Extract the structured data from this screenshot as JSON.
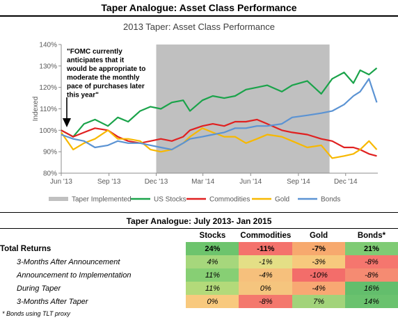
{
  "header": {
    "title": "Taper Analogue: Asset Class Performance"
  },
  "chart_data": {
    "type": "line",
    "title": "2013 Taper: Asset Class Performance",
    "ylabel": "Indexed",
    "ylim": [
      80,
      140
    ],
    "yticks": [
      "80%",
      "90%",
      "100%",
      "110%",
      "120%",
      "130%",
      "140%"
    ],
    "xlim": [
      "2013-06-01",
      "2015-02-01"
    ],
    "xticks": [
      {
        "label": "Jun '13",
        "date": "2013-06-01"
      },
      {
        "label": "Sep '13",
        "date": "2013-09-01"
      },
      {
        "label": "Dec '13",
        "date": "2013-12-01"
      },
      {
        "label": "Mar '14",
        "date": "2014-03-01"
      },
      {
        "label": "Jun '14",
        "date": "2014-06-01"
      },
      {
        "label": "Sep '14",
        "date": "2014-09-01"
      },
      {
        "label": "Dec '14",
        "date": "2014-12-01"
      }
    ],
    "shaded_region": {
      "label": "Taper Implemented",
      "start": "2013-12-01",
      "end": "2014-10-31",
      "color": "#c0c0c0"
    },
    "annotation": "\"FOMC currently anticipates that it would be appropriate to moderate the monthly pace of purchases later this year\"",
    "legend_position": "bottom",
    "series": [
      {
        "name": "US Stocks",
        "color": "#1aa34a",
        "x": [
          "2013-06-01",
          "2013-06-24",
          "2013-07-15",
          "2013-08-05",
          "2013-08-30",
          "2013-09-18",
          "2013-10-08",
          "2013-10-31",
          "2013-11-20",
          "2013-12-10",
          "2013-12-31",
          "2014-01-22",
          "2014-02-04",
          "2014-02-28",
          "2014-03-20",
          "2014-04-11",
          "2014-05-02",
          "2014-05-23",
          "2014-06-13",
          "2014-07-03",
          "2014-07-31",
          "2014-08-20",
          "2014-09-18",
          "2014-10-15",
          "2014-11-05",
          "2014-11-28",
          "2014-12-16",
          "2014-12-29",
          "2015-01-15",
          "2015-01-30"
        ],
        "y": [
          100,
          97,
          103,
          105,
          102,
          106,
          104,
          109,
          111,
          110,
          113,
          114,
          109,
          114,
          116,
          115,
          116,
          119,
          120,
          121,
          118,
          121,
          123,
          117,
          124,
          127,
          122,
          128,
          126,
          129
        ]
      },
      {
        "name": "Commodities",
        "color": "#e02020",
        "x": [
          "2013-06-01",
          "2013-06-24",
          "2013-07-15",
          "2013-08-05",
          "2013-08-30",
          "2013-09-18",
          "2013-10-08",
          "2013-10-31",
          "2013-11-20",
          "2013-12-10",
          "2013-12-31",
          "2014-01-22",
          "2014-02-04",
          "2014-02-28",
          "2014-03-20",
          "2014-04-11",
          "2014-05-02",
          "2014-05-23",
          "2014-06-13",
          "2014-07-03",
          "2014-07-31",
          "2014-08-20",
          "2014-09-18",
          "2014-10-15",
          "2014-11-05",
          "2014-11-28",
          "2014-12-16",
          "2014-12-29",
          "2015-01-15",
          "2015-01-30"
        ],
        "y": [
          100,
          97,
          99,
          101,
          100,
          97,
          95,
          94,
          95,
          96,
          95,
          97,
          100,
          102,
          103,
          102,
          104,
          104,
          105,
          103,
          100,
          99,
          98,
          96,
          95,
          92,
          92,
          91,
          89,
          88
        ]
      },
      {
        "name": "Gold",
        "color": "#f7b800",
        "x": [
          "2013-06-01",
          "2013-06-24",
          "2013-07-15",
          "2013-08-05",
          "2013-08-30",
          "2013-09-18",
          "2013-10-08",
          "2013-10-31",
          "2013-11-20",
          "2013-12-10",
          "2013-12-31",
          "2014-01-22",
          "2014-02-04",
          "2014-02-28",
          "2014-03-20",
          "2014-04-11",
          "2014-05-02",
          "2014-05-23",
          "2014-06-13",
          "2014-07-03",
          "2014-07-31",
          "2014-08-20",
          "2014-09-18",
          "2014-10-15",
          "2014-11-05",
          "2014-11-28",
          "2014-12-16",
          "2014-12-29",
          "2015-01-15",
          "2015-01-30"
        ],
        "y": [
          99,
          91,
          94,
          96,
          100,
          96,
          96,
          95,
          91,
          90,
          91,
          94,
          97,
          101,
          99,
          97,
          97,
          94,
          96,
          98,
          97,
          95,
          92,
          93,
          87,
          88,
          89,
          91,
          95,
          91
        ]
      },
      {
        "name": "Bonds",
        "color": "#5b93d3",
        "x": [
          "2013-06-01",
          "2013-06-24",
          "2013-07-15",
          "2013-08-05",
          "2013-08-30",
          "2013-09-18",
          "2013-10-08",
          "2013-10-31",
          "2013-11-20",
          "2013-12-10",
          "2013-12-31",
          "2014-01-22",
          "2014-02-04",
          "2014-02-28",
          "2014-03-20",
          "2014-04-11",
          "2014-05-02",
          "2014-05-23",
          "2014-06-13",
          "2014-07-03",
          "2014-07-31",
          "2014-08-20",
          "2014-09-18",
          "2014-10-15",
          "2014-11-05",
          "2014-11-28",
          "2014-12-16",
          "2014-12-29",
          "2015-01-15",
          "2015-01-30"
        ],
        "y": [
          98,
          96,
          95,
          92,
          93,
          95,
          94,
          94,
          93,
          92,
          91,
          94,
          96,
          97,
          98,
          99,
          101,
          101,
          102,
          102,
          103,
          106,
          107,
          108,
          109,
          112,
          116,
          118,
          124,
          113
        ]
      }
    ]
  },
  "table": {
    "title": "Taper Analogue: July 2013- Jan 2015",
    "columns": [
      "Stocks",
      "Commodities",
      "Gold",
      "Bonds*"
    ],
    "rows": [
      {
        "label": "Total Returns",
        "style": "total",
        "values": [
          "24%",
          "-11%",
          "-7%",
          "21%"
        ],
        "colors": [
          "#6dc46d",
          "#f4726c",
          "#f7a96e",
          "#7fcb74"
        ]
      },
      {
        "label": "3-Months After Announcement",
        "style": "sub",
        "values": [
          "4%",
          "-1%",
          "-3%",
          "-8%"
        ],
        "colors": [
          "#a6d77c",
          "#e4df86",
          "#f7c97d",
          "#f5766e"
        ]
      },
      {
        "label": "Announcement to Implementation",
        "style": "sub",
        "values": [
          "11%",
          "-4%",
          "-10%",
          "-8%"
        ],
        "colors": [
          "#87cf74",
          "#f6c07c",
          "#f36d6a",
          "#f58b72"
        ]
      },
      {
        "label": "During Taper",
        "style": "sub",
        "values": [
          "11%",
          "0%",
          "-4%",
          "16%"
        ],
        "colors": [
          "#b3da7a",
          "#f5c57e",
          "#f8a873",
          "#63be6c"
        ]
      },
      {
        "label": "3-Months After Taper",
        "style": "sub",
        "values": [
          "0%",
          "-8%",
          "7%",
          "14%"
        ],
        "colors": [
          "#f8c97e",
          "#f4786d",
          "#a2d37a",
          "#6ac26e"
        ]
      }
    ],
    "footnote": "* Bonds using TLT proxy"
  }
}
